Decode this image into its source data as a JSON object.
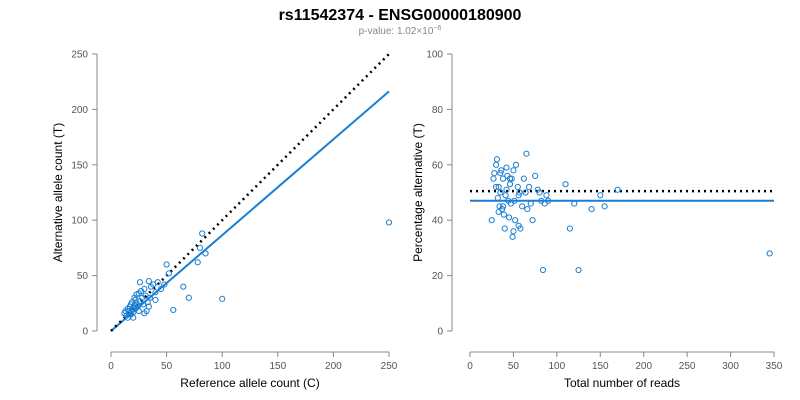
{
  "header": {
    "title": "rs11542374 - ENSG00000180900",
    "pvalue_prefix": "p-value: 1.02×10",
    "pvalue_exp": "−6"
  },
  "colors": {
    "points": "#1a7fd4",
    "fit": "#1a7fd4",
    "reference": "#000000"
  },
  "chart_data": [
    {
      "type": "scatter",
      "xlabel": "Reference allele count (C)",
      "ylabel": "Alternative allele count (T)",
      "xlim": [
        0,
        250
      ],
      "ylim": [
        0,
        250
      ],
      "xticks": [
        0,
        50,
        100,
        150,
        200,
        250
      ],
      "yticks": [
        0,
        50,
        100,
        150,
        200,
        250
      ],
      "x": [
        12,
        13,
        14,
        15,
        15,
        16,
        17,
        17,
        18,
        18,
        19,
        19,
        20,
        20,
        21,
        21,
        22,
        22,
        23,
        23,
        24,
        25,
        25,
        26,
        27,
        28,
        29,
        30,
        31,
        32,
        33,
        34,
        35,
        36,
        38,
        40,
        42,
        45,
        48,
        50,
        52,
        56,
        65,
        70,
        78,
        80,
        82,
        85,
        100,
        250,
        20,
        26,
        30,
        34,
        40
      ],
      "y": [
        16,
        18,
        14,
        12,
        20,
        18,
        16,
        22,
        15,
        24,
        19,
        26,
        17,
        21,
        23,
        30,
        20,
        28,
        25,
        33,
        22,
        18,
        34,
        27,
        36,
        30,
        24,
        38,
        32,
        18,
        26,
        45,
        30,
        40,
        42,
        28,
        44,
        38,
        42,
        60,
        52,
        19,
        40,
        30,
        62,
        75,
        88,
        70,
        29,
        98,
        12,
        44,
        16,
        22,
        35
      ],
      "lines": [
        {
          "kind": "fit",
          "slope": 0.865,
          "intercept": 0
        },
        {
          "kind": "reference",
          "slope": 1.0,
          "intercept": 0
        }
      ]
    },
    {
      "type": "scatter",
      "xlabel": "Total number of reads",
      "ylabel": "Percentage alternative (T)",
      "xlim": [
        0,
        350
      ],
      "ylim": [
        0,
        100
      ],
      "xticks": [
        0,
        50,
        100,
        150,
        200,
        250,
        300,
        350
      ],
      "yticks": [
        0,
        20,
        40,
        60,
        80,
        100
      ],
      "x": [
        25,
        27,
        28,
        30,
        31,
        32,
        33,
        34,
        35,
        36,
        37,
        38,
        39,
        40,
        41,
        42,
        43,
        44,
        45,
        46,
        47,
        48,
        49,
        50,
        51,
        52,
        53,
        55,
        56,
        57,
        58,
        60,
        62,
        64,
        65,
        66,
        68,
        70,
        72,
        75,
        78,
        80,
        82,
        84,
        86,
        88,
        90,
        110,
        115,
        120,
        125,
        140,
        150,
        155,
        170,
        345,
        30,
        33,
        35,
        38,
        42,
        46,
        50,
        56
      ],
      "y": [
        40,
        55,
        57,
        60,
        62,
        48,
        52,
        45,
        50,
        58,
        44,
        55,
        42,
        37,
        49,
        51,
        56,
        47,
        41,
        53,
        46,
        55,
        34,
        58,
        47,
        40,
        60,
        52,
        38,
        50,
        37,
        45,
        55,
        50,
        64,
        44,
        52,
        46,
        40,
        56,
        51,
        50,
        47,
        22,
        46,
        49,
        47,
        53,
        37,
        46,
        22,
        44,
        49,
        45,
        51,
        28,
        52,
        43,
        57,
        45,
        59,
        55,
        36,
        49
      ],
      "lines": [
        {
          "kind": "fit",
          "slope": 0,
          "intercept": 47
        },
        {
          "kind": "reference",
          "slope": 0,
          "intercept": 50.5
        }
      ]
    }
  ]
}
